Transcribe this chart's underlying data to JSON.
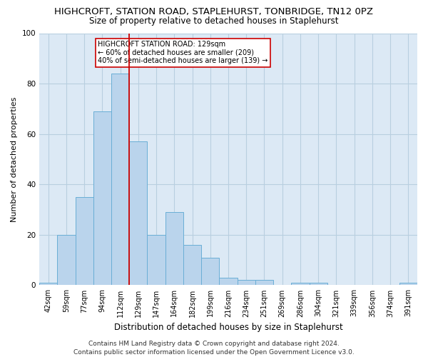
{
  "title": "HIGHCROFT, STATION ROAD, STAPLEHURST, TONBRIDGE, TN12 0PZ",
  "subtitle": "Size of property relative to detached houses in Staplehurst",
  "xlabel": "Distribution of detached houses by size in Staplehurst",
  "ylabel": "Number of detached properties",
  "categories": [
    "42sqm",
    "59sqm",
    "77sqm",
    "94sqm",
    "112sqm",
    "129sqm",
    "147sqm",
    "164sqm",
    "182sqm",
    "199sqm",
    "216sqm",
    "234sqm",
    "251sqm",
    "269sqm",
    "286sqm",
    "304sqm",
    "321sqm",
    "339sqm",
    "356sqm",
    "374sqm",
    "391sqm"
  ],
  "values": [
    1,
    20,
    35,
    69,
    84,
    57,
    20,
    29,
    16,
    11,
    3,
    2,
    2,
    0,
    1,
    1,
    0,
    0,
    0,
    0,
    1
  ],
  "bar_color": "#bad4ec",
  "bar_edge_color": "#6aaed6",
  "bar_linewidth": 0.7,
  "vline_color": "#cc0000",
  "vline_linewidth": 1.3,
  "vline_index": 5,
  "ylim": [
    0,
    100
  ],
  "yticks": [
    0,
    20,
    40,
    60,
    80,
    100
  ],
  "annotation_text": "HIGHCROFT STATION ROAD: 129sqm\n← 60% of detached houses are smaller (209)\n40% of semi-detached houses are larger (139) →",
  "annotation_box_edgecolor": "#cc0000",
  "annotation_box_facecolor": "#ffffff",
  "footer_line1": "Contains HM Land Registry data © Crown copyright and database right 2024.",
  "footer_line2": "Contains public sector information licensed under the Open Government Licence v3.0.",
  "bg_color": "#ffffff",
  "plot_bg_color": "#dce9f5",
  "grid_color": "#b8cfe0",
  "title_fontsize": 9.5,
  "subtitle_fontsize": 8.5,
  "xlabel_fontsize": 8.5,
  "ylabel_fontsize": 8,
  "tick_fontsize": 7,
  "annotation_fontsize": 7,
  "footer_fontsize": 6.5
}
